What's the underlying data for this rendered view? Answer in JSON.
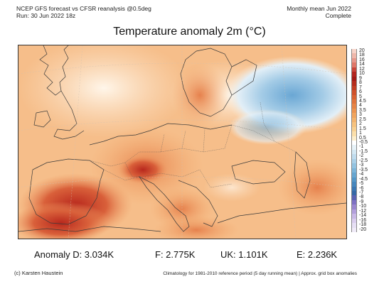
{
  "header": {
    "line1_left": "NCEP GFS forecast vs CFSR reanalysis @0.5deg",
    "line2_left": "Run: 30 Jun 2022 18z",
    "line1_right": "Monthly mean Jun 2022",
    "line2_right": "Complete"
  },
  "title": "Temperature anomaly 2m (°C)",
  "colorbar": {
    "labels": [
      "20",
      "18",
      "16",
      "14",
      "12",
      "10",
      "9",
      "8",
      "7",
      "6",
      "5",
      "4.5",
      "4",
      "3.5",
      "3",
      "2.5",
      "2",
      "1.5",
      "1",
      "0.5",
      "-0.5",
      "-1",
      "-1.5",
      "-2",
      "-2.5",
      "-3",
      "-3.5",
      "-4",
      "-4.5",
      "-5",
      "-6",
      "-7",
      "-8",
      "-9",
      "-10",
      "-12",
      "-14",
      "-16",
      "-18",
      "-20"
    ],
    "colors": [
      "#f7d3c8",
      "#efb7aa",
      "#e7968a",
      "#df7668",
      "#c9453a",
      "#b2251f",
      "#a31a16",
      "#b42c1d",
      "#c23e24",
      "#cf512b",
      "#d96232",
      "#e0743c",
      "#e68446",
      "#ec9450",
      "#f0a45e",
      "#f3b36d",
      "#f6c27e",
      "#f8d092",
      "#fbdfaa",
      "#fdeecb",
      "#ffffff",
      "#e7f2f8",
      "#d4e8f3",
      "#c0dcee",
      "#aad0e8",
      "#93c3e1",
      "#7cb5d9",
      "#67a6d0",
      "#5497c7",
      "#4687bd",
      "#3b77b2",
      "#3568a6",
      "#5a63b3",
      "#7e70c3",
      "#9a86cf",
      "#b39fdc",
      "#c9b8e6",
      "#dacdee",
      "#e6dff4",
      "#f0ebf8"
    ]
  },
  "stats": {
    "anomaly_d": "Anomaly D: 3.034K",
    "f": "F: 2.775K",
    "uk": "UK: 1.101K",
    "e": "E: 2.236K"
  },
  "footer": {
    "left": "(c) Karsten Haustein",
    "right": "Climatology for 1981-2010 reference period (5 day running mean) | Approx. grid box anomalies"
  }
}
